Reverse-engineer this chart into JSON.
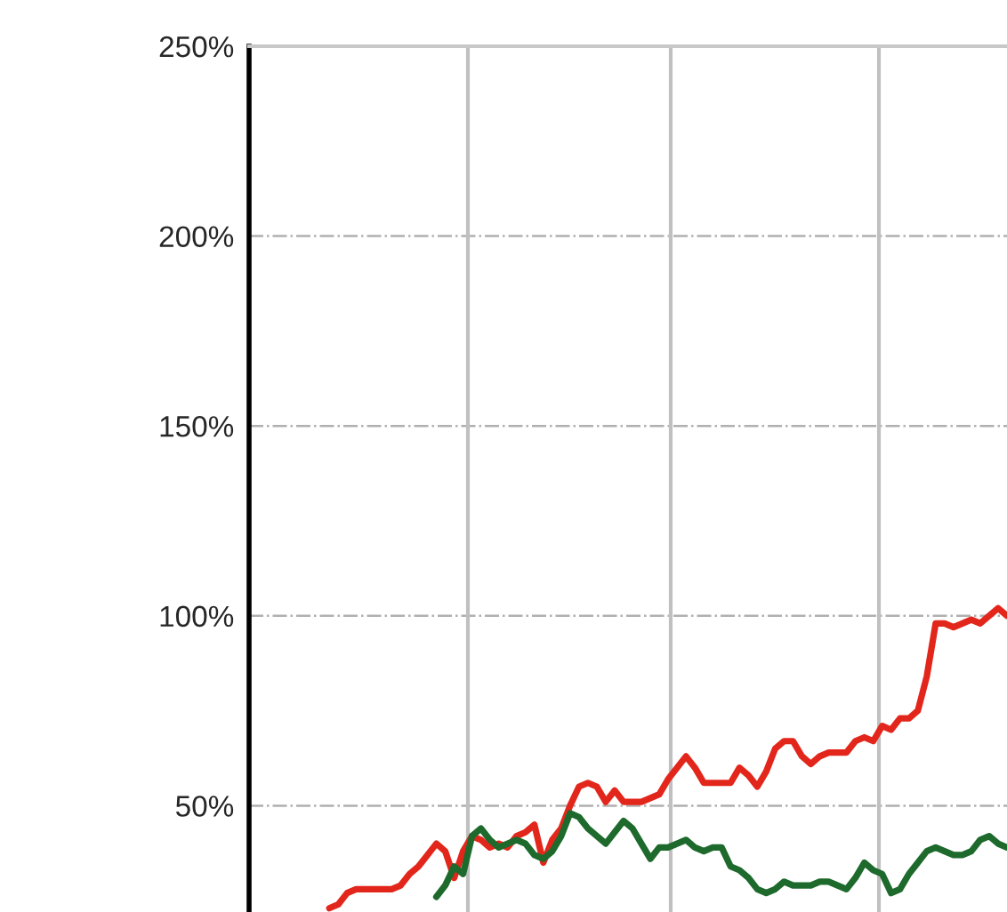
{
  "chart_data": {
    "type": "line",
    "categories": [
      null,
      null,
      null,
      null,
      null,
      null,
      null,
      null,
      null,
      null,
      null,
      null,
      null,
      null,
      null,
      null,
      null,
      null,
      null,
      null,
      null,
      null,
      null,
      null,
      null,
      null,
      null,
      null,
      null,
      null,
      null,
      null,
      null,
      null,
      null,
      null,
      null,
      null,
      null,
      null,
      null,
      null,
      null,
      null,
      null,
      null,
      null,
      null,
      null,
      null,
      null,
      null,
      null,
      null,
      null,
      null,
      null,
      null,
      null,
      null,
      null,
      null,
      null,
      null,
      null,
      null,
      null,
      null,
      null,
      null,
      null,
      null,
      null,
      null,
      null,
      null,
      null,
      null,
      null,
      null,
      null,
      null,
      null,
      null,
      null,
      null
    ],
    "ylim": [
      22,
      250
    ],
    "yticks": [
      {
        "value": 50,
        "label": "50%"
      },
      {
        "value": 100,
        "label": "100%"
      },
      {
        "value": 150,
        "label": "150%"
      },
      {
        "value": 200,
        "label": "200%"
      },
      {
        "value": 250,
        "label": "250%"
      }
    ],
    "grid": "y",
    "marker": "none",
    "line_style": "solid",
    "series": [
      {
        "color": "#e3261b",
        "values": [
          null,
          null,
          null,
          null,
          null,
          null,
          null,
          null,
          null,
          23,
          24,
          27,
          28,
          28,
          28,
          28,
          28,
          29,
          32,
          34,
          37,
          40,
          38,
          31,
          38,
          42,
          41,
          39,
          40,
          39,
          42,
          43,
          45,
          35,
          41,
          44,
          50,
          55,
          56,
          55,
          51,
          54,
          51,
          51,
          51,
          52,
          53,
          57,
          60,
          63,
          60,
          56,
          56,
          56,
          56,
          60,
          58,
          55,
          59,
          65,
          67,
          67,
          63,
          61,
          63,
          64,
          64,
          64,
          67,
          68,
          67,
          71,
          70,
          73,
          73,
          75,
          84,
          98,
          98,
          97,
          98,
          99,
          98,
          100,
          102,
          100
        ]
      },
      {
        "color": "#1d6a2c",
        "values": [
          null,
          null,
          null,
          null,
          null,
          null,
          null,
          null,
          null,
          null,
          null,
          null,
          null,
          null,
          null,
          null,
          null,
          null,
          null,
          null,
          null,
          26,
          29,
          34,
          32,
          42,
          44,
          41,
          39,
          40,
          41,
          40,
          37,
          36,
          38,
          42,
          48,
          47,
          44,
          42,
          40,
          43,
          46,
          44,
          40,
          36,
          39,
          39,
          40,
          41,
          39,
          38,
          39,
          39,
          34,
          33,
          31,
          28,
          27,
          28,
          30,
          29,
          29,
          29,
          30,
          30,
          29,
          28,
          31,
          35,
          33,
          32,
          27,
          28,
          32,
          35,
          38,
          39,
          38,
          37,
          37,
          38,
          41,
          42,
          40,
          39
        ]
      }
    ]
  }
}
